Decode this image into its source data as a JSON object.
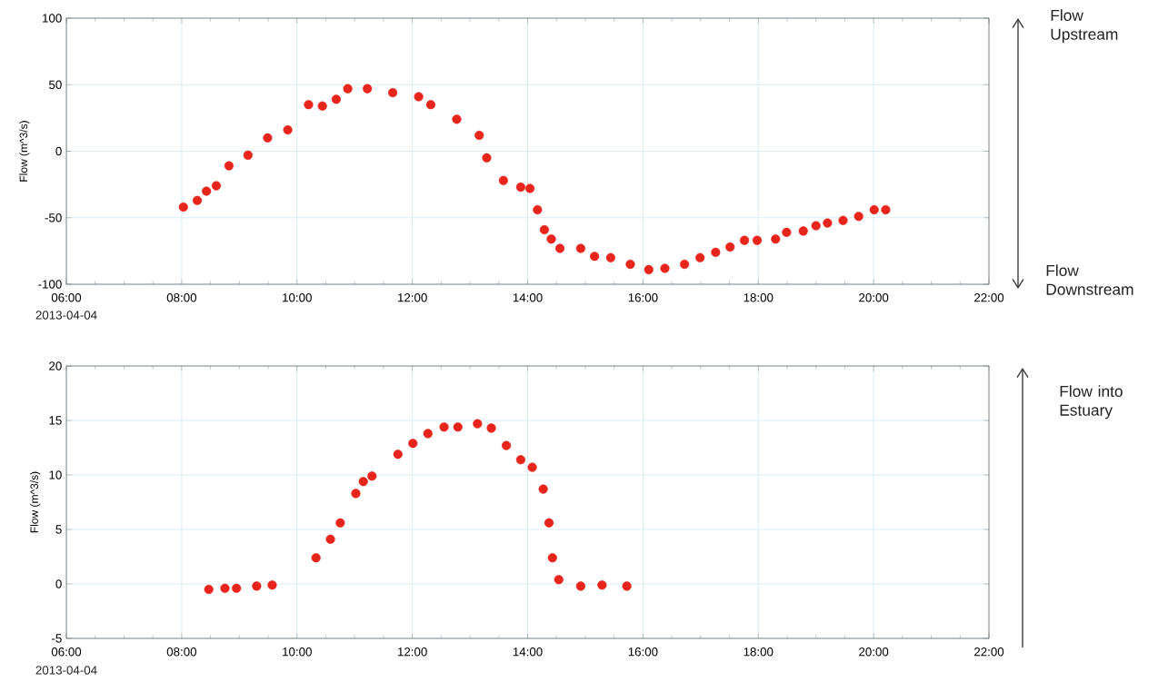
{
  "chart_data": [
    {
      "type": "scatter",
      "ylabel": "Flow (m^3/s)",
      "xlim": [
        6,
        22
      ],
      "ylim": [
        -100,
        100
      ],
      "xticks": [
        {
          "value": 6,
          "label": "06:00"
        },
        {
          "value": 8,
          "label": "08:00"
        },
        {
          "value": 10,
          "label": "10:00"
        },
        {
          "value": 12,
          "label": "12:00"
        },
        {
          "value": 14,
          "label": "14:00"
        },
        {
          "value": 16,
          "label": "16:00"
        },
        {
          "value": 18,
          "label": "18:00"
        },
        {
          "value": 20,
          "label": "20:00"
        },
        {
          "value": 22,
          "label": "22:00"
        }
      ],
      "yticks": [
        -100,
        -50,
        0,
        50,
        100
      ],
      "grid": true,
      "marker": "circle",
      "annotations": [
        "2013-04-04",
        "Flow Upstream",
        "Flow Downstream"
      ],
      "series": [
        {
          "color": "#e8251c",
          "x": [
            8.03,
            8.27,
            8.43,
            8.6,
            8.82,
            9.15,
            9.49,
            9.84,
            10.2,
            10.44,
            10.68,
            10.88,
            11.22,
            11.66,
            12.11,
            12.32,
            12.77,
            13.16,
            13.29,
            13.58,
            13.88,
            14.04,
            14.17,
            14.29,
            14.41,
            14.56,
            14.92,
            15.16,
            15.44,
            15.78,
            16.1,
            16.38,
            16.72,
            16.99,
            17.26,
            17.51,
            17.76,
            17.98,
            18.3,
            18.49,
            18.78,
            19.0,
            19.2,
            19.47,
            19.74,
            20.01,
            20.21
          ],
          "values": [
            -42,
            -37,
            -30,
            -26,
            -11,
            -3,
            10,
            16,
            35,
            34,
            39,
            47,
            47,
            44,
            41,
            35,
            24,
            12,
            -5,
            -22,
            -27,
            -28,
            -44,
            -59,
            -66,
            -73,
            -73,
            -79,
            -80,
            -85,
            -89,
            -88,
            -85,
            -80,
            -76,
            -72,
            -67,
            -67,
            -66,
            -61,
            -60,
            -56,
            -54,
            -52,
            -49,
            -44,
            -44
          ]
        }
      ]
    },
    {
      "type": "scatter",
      "ylabel": "Flow (m^3/s)",
      "xlim": [
        6,
        22
      ],
      "ylim": [
        -5,
        20
      ],
      "xticks": [
        {
          "value": 6,
          "label": "06:00"
        },
        {
          "value": 8,
          "label": "08:00"
        },
        {
          "value": 10,
          "label": "10:00"
        },
        {
          "value": 12,
          "label": "12:00"
        },
        {
          "value": 14,
          "label": "14:00"
        },
        {
          "value": 16,
          "label": "16:00"
        },
        {
          "value": 18,
          "label": "18:00"
        },
        {
          "value": 20,
          "label": "20:00"
        },
        {
          "value": 22,
          "label": "22:00"
        }
      ],
      "yticks": [
        -5,
        0,
        5,
        10,
        15,
        20
      ],
      "grid": true,
      "marker": "circle",
      "annotations": [
        "2013-04-04",
        "Flow into Estuary"
      ],
      "series": [
        {
          "color": "#e8251c",
          "x": [
            8.47,
            8.75,
            8.95,
            9.3,
            9.57,
            10.33,
            10.58,
            10.75,
            11.02,
            11.15,
            11.3,
            11.75,
            12.01,
            12.27,
            12.55,
            12.79,
            13.13,
            13.37,
            13.63,
            13.88,
            14.08,
            14.27,
            14.37,
            14.43,
            14.54,
            14.92,
            15.29,
            15.72
          ],
          "values": [
            -0.5,
            -0.4,
            -0.4,
            -0.2,
            -0.1,
            2.4,
            4.1,
            5.6,
            8.3,
            9.4,
            9.9,
            11.9,
            12.9,
            13.8,
            14.4,
            14.4,
            14.7,
            14.3,
            12.7,
            11.4,
            10.7,
            8.7,
            5.6,
            2.4,
            0.4,
            -0.2,
            -0.1,
            -0.2
          ]
        }
      ]
    }
  ]
}
